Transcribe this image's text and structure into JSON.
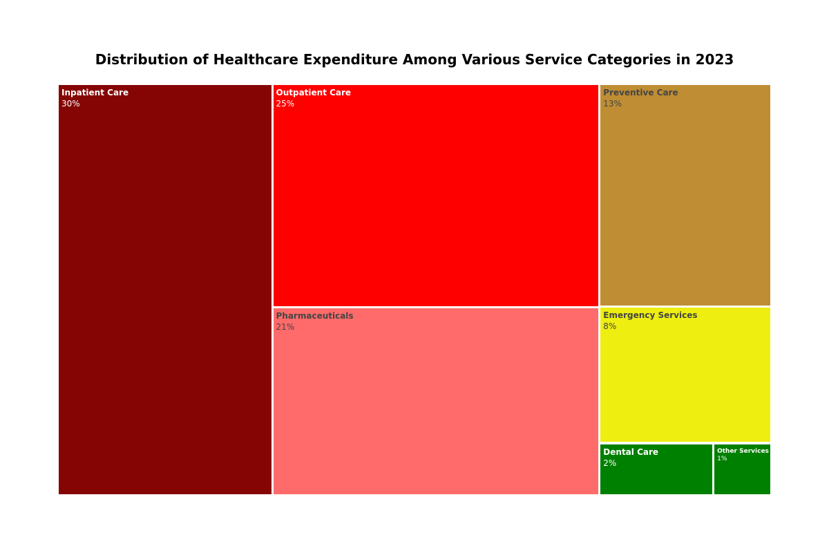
{
  "chart_data": {
    "type": "treemap",
    "title": "Distribution of Healthcare Expenditure Among Various Service Categories in 2023",
    "unit": "%",
    "items": [
      {
        "label": "Inpatient Care",
        "value": 30,
        "display": "30%",
        "color": "#850505",
        "text_color": "#ffffff"
      },
      {
        "label": "Outpatient Care",
        "value": 25,
        "display": "25%",
        "color": "#ff0000",
        "text_color": "#ffffff"
      },
      {
        "label": "Pharmaceuticals",
        "value": 21,
        "display": "21%",
        "color": "#ff6a6a",
        "text_color": "#444444"
      },
      {
        "label": "Preventive Care",
        "value": 13,
        "display": "13%",
        "color": "#bf8d33",
        "text_color": "#444444"
      },
      {
        "label": "Emergency Services",
        "value": 8,
        "display": "8%",
        "color": "#eeee11",
        "text_color": "#444444"
      },
      {
        "label": "Dental Care",
        "value": 2,
        "display": "2%",
        "color": "#008000",
        "text_color": "#ffffff"
      },
      {
        "label": "Other Services",
        "value": 1,
        "display": "1%",
        "color": "#008000",
        "text_color": "#ffffff"
      }
    ]
  }
}
